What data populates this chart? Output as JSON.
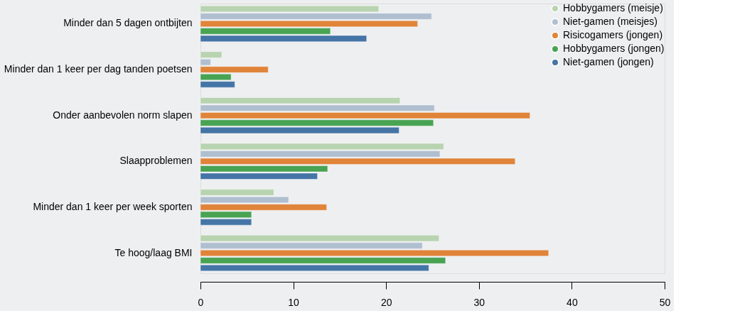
{
  "chart_data": {
    "type": "bar",
    "orientation": "horizontal",
    "categories": [
      "Minder dan 5 dagen ontbijten",
      "Minder dan 1 keer per dag tanden poetsen",
      "Onder aanbevolen norm slapen",
      "Slaapproblemen",
      "Minder dan 1 keer per week sporten",
      "Te hoog/laag BMI"
    ],
    "series": [
      {
        "name": "Hobbygamers (meisje)",
        "color": "#b8d3b0",
        "values": [
          19.2,
          2.3,
          21.5,
          26.2,
          7.9,
          25.7
        ]
      },
      {
        "name": "Niet-gamen (meisjes)",
        "color": "#b0bfd0",
        "values": [
          24.9,
          1.1,
          25.2,
          25.8,
          9.5,
          23.9
        ]
      },
      {
        "name": "Risicogamers (jongen)",
        "color": "#e0843a",
        "values": [
          23.4,
          7.3,
          35.5,
          33.9,
          13.6,
          37.5
        ]
      },
      {
        "name": "Hobbygamers (jongen)",
        "color": "#48a353",
        "values": [
          14.0,
          3.3,
          25.1,
          13.7,
          5.5,
          26.4
        ]
      },
      {
        "name": "Niet-gamen (jongen)",
        "color": "#4575a6",
        "values": [
          17.9,
          3.7,
          21.4,
          12.6,
          5.5,
          24.6
        ]
      }
    ],
    "xlim": [
      0,
      50
    ],
    "xticks": [
      0,
      10,
      20,
      30,
      40,
      50
    ],
    "grid": false,
    "legend": "top right"
  }
}
